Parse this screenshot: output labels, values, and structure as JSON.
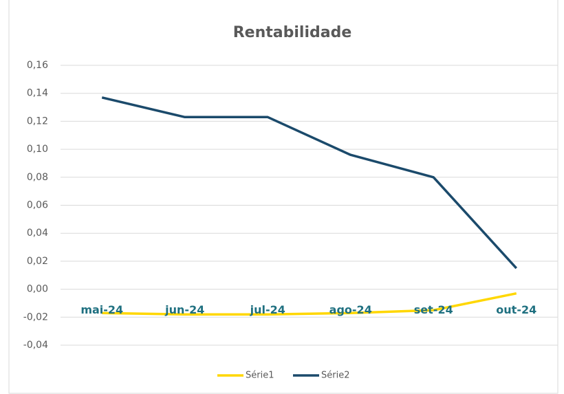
{
  "chart_data": {
    "type": "line",
    "title": "Rentabilidade",
    "categories": [
      "mai-24",
      "jun-24",
      "jul-24",
      "ago-24",
      "set-24",
      "out-24"
    ],
    "series": [
      {
        "name": "Série1",
        "color": "#ffd700",
        "values": [
          -0.017,
          -0.018,
          -0.018,
          -0.017,
          -0.015,
          -0.003
        ]
      },
      {
        "name": "Série2",
        "color": "#1b4a6b",
        "values": [
          0.137,
          0.123,
          0.123,
          0.096,
          0.08,
          0.015
        ]
      }
    ],
    "ylim": [
      -0.04,
      0.16
    ],
    "yticks": [
      {
        "value": -0.04,
        "label": "-0,04"
      },
      {
        "value": -0.02,
        "label": "-0,02"
      },
      {
        "value": 0,
        "label": "0,00"
      },
      {
        "value": 0.02,
        "label": "0,02"
      },
      {
        "value": 0.04,
        "label": "0,04"
      },
      {
        "value": 0.06,
        "label": "0,06"
      },
      {
        "value": 0.08,
        "label": "0,08"
      },
      {
        "value": 0.1,
        "label": "0,10"
      },
      {
        "value": 0.12,
        "label": "0,12"
      },
      {
        "value": 0.14,
        "label": "0,14"
      },
      {
        "value": 0.16,
        "label": "0,16"
      }
    ],
    "grid": true,
    "legend": "bottom"
  }
}
